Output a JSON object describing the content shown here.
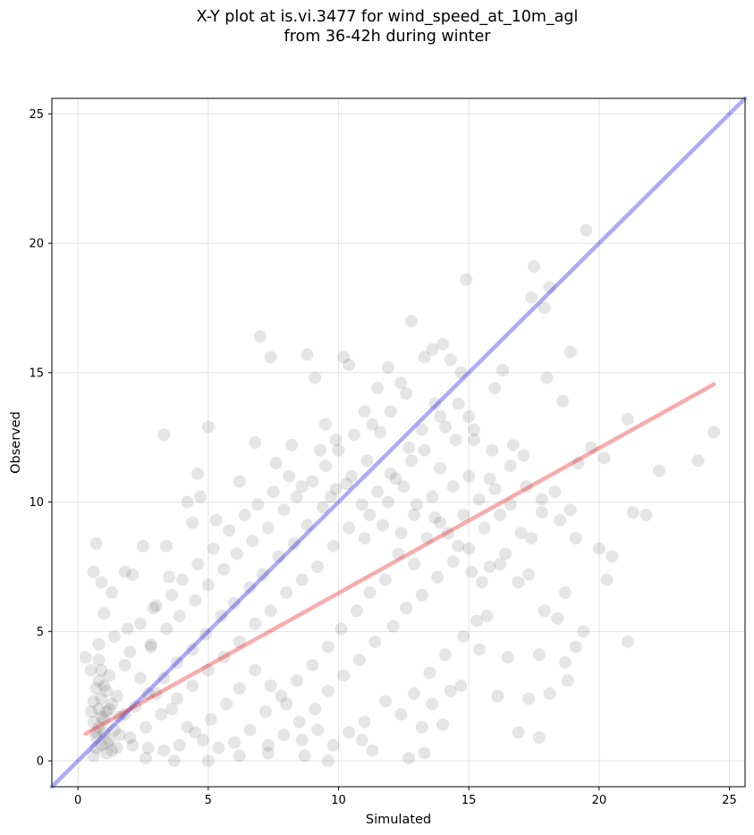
{
  "title": "X-Y plot at is.vi.3477 for wind_speed_at_10m_agl\nfrom 36-42h during winter",
  "chart_data": {
    "type": "scatter",
    "title": "X-Y plot at is.vi.3477 for wind_speed_at_10m_agl\nfrom 36-42h during winter",
    "xlabel": "Simulated",
    "ylabel": "Observed",
    "xlim": [
      -1.0,
      25.6
    ],
    "ylim": [
      -1.0,
      25.6
    ],
    "xticks": [
      0,
      5,
      10,
      15,
      20,
      25
    ],
    "yticks": [
      0,
      5,
      10,
      15,
      20,
      25
    ],
    "grid": true,
    "series": [
      {
        "marker_color": "#000000",
        "alpha": 0.1,
        "points": [
          [
            0.7,
            8.4
          ],
          [
            0.6,
            7.3
          ],
          [
            0.9,
            6.9
          ],
          [
            1.3,
            6.5
          ],
          [
            1.0,
            5.7
          ],
          [
            0.8,
            4.5
          ],
          [
            0.3,
            4.0
          ],
          [
            0.5,
            3.5
          ],
          [
            1.4,
            4.8
          ],
          [
            1.8,
            7.3
          ],
          [
            2.1,
            7.2
          ],
          [
            2.5,
            8.3
          ],
          [
            3.4,
            8.3
          ],
          [
            3.3,
            12.6
          ],
          [
            3.5,
            7.1
          ],
          [
            3.0,
            6.0
          ],
          [
            2.4,
            5.3
          ],
          [
            1.9,
            5.1
          ],
          [
            2.0,
            4.2
          ],
          [
            2.8,
            4.4
          ],
          [
            4.2,
            10.0
          ],
          [
            4.6,
            11.1
          ],
          [
            4.4,
            9.2
          ],
          [
            5.0,
            12.9
          ],
          [
            4.7,
            10.2
          ],
          [
            5.3,
            9.3
          ],
          [
            6.2,
            10.8
          ],
          [
            6.8,
            12.3
          ],
          [
            7.0,
            16.4
          ],
          [
            7.4,
            15.6
          ],
          [
            8.2,
            12.2
          ],
          [
            8.8,
            15.7
          ],
          [
            9.1,
            14.8
          ],
          [
            9.5,
            13.0
          ],
          [
            9.9,
            12.4
          ],
          [
            10.2,
            15.6
          ],
          [
            10.4,
            15.3
          ],
          [
            11.0,
            13.5
          ],
          [
            11.5,
            14.4
          ],
          [
            11.9,
            15.2
          ],
          [
            12.4,
            14.6
          ],
          [
            12.8,
            17.0
          ],
          [
            13.3,
            15.6
          ],
          [
            13.6,
            15.9
          ],
          [
            14.0,
            16.1
          ],
          [
            14.3,
            15.5
          ],
          [
            14.9,
            18.6
          ],
          [
            14.7,
            15.0
          ],
          [
            15.0,
            13.3
          ],
          [
            15.2,
            12.4
          ],
          [
            15.8,
            10.9
          ],
          [
            16.0,
            14.4
          ],
          [
            16.3,
            15.1
          ],
          [
            16.7,
            12.2
          ],
          [
            17.1,
            11.8
          ],
          [
            17.4,
            17.9
          ],
          [
            17.5,
            19.1
          ],
          [
            17.9,
            17.5
          ],
          [
            18.1,
            18.3
          ],
          [
            18.0,
            14.8
          ],
          [
            18.6,
            13.9
          ],
          [
            18.9,
            15.8
          ],
          [
            19.5,
            20.5
          ],
          [
            19.2,
            11.5
          ],
          [
            19.7,
            12.1
          ],
          [
            20.2,
            11.7
          ],
          [
            20.5,
            7.9
          ],
          [
            20.3,
            7.0
          ],
          [
            20.0,
            8.2
          ],
          [
            21.1,
            13.2
          ],
          [
            21.3,
            9.6
          ],
          [
            21.8,
            9.5
          ],
          [
            22.3,
            11.2
          ],
          [
            23.8,
            11.6
          ],
          [
            24.4,
            12.7
          ],
          [
            21.1,
            4.6
          ],
          [
            19.4,
            5.0
          ],
          [
            19.1,
            4.4
          ],
          [
            18.7,
            3.8
          ],
          [
            18.8,
            3.1
          ],
          [
            18.1,
            2.6
          ],
          [
            17.7,
            4.1
          ],
          [
            17.3,
            2.4
          ],
          [
            16.9,
            1.1
          ],
          [
            17.7,
            0.9
          ],
          [
            16.1,
            2.5
          ],
          [
            16.5,
            4.0
          ],
          [
            15.4,
            4.3
          ],
          [
            15.7,
            5.6
          ],
          [
            14.7,
            2.9
          ],
          [
            14.3,
            2.7
          ],
          [
            14.0,
            1.4
          ],
          [
            13.6,
            2.2
          ],
          [
            13.2,
            1.3
          ],
          [
            12.7,
            0.1
          ],
          [
            13.3,
            0.3
          ],
          [
            11.3,
            0.4
          ],
          [
            10.9,
            0.8
          ],
          [
            9.6,
            0.0
          ],
          [
            8.7,
            0.2
          ],
          [
            7.3,
            0.3
          ],
          [
            6.2,
            0.2
          ],
          [
            5.0,
            0.0
          ],
          [
            3.7,
            0.0
          ],
          [
            2.6,
            0.1
          ],
          [
            16.6,
            9.9
          ],
          [
            17.0,
            8.8
          ],
          [
            17.4,
            8.6
          ],
          [
            17.8,
            9.6
          ],
          [
            18.3,
            10.4
          ],
          [
            18.9,
            9.7
          ],
          [
            16.9,
            6.9
          ],
          [
            17.3,
            7.2
          ],
          [
            18.7,
            6.5
          ],
          [
            18.4,
            5.5
          ],
          [
            17.9,
            5.8
          ],
          [
            16.2,
            7.6
          ],
          [
            15.5,
            6.9
          ],
          [
            15.1,
            7.3
          ],
          [
            14.6,
            8.3
          ],
          [
            13.9,
            9.2
          ],
          [
            13.4,
            8.6
          ],
          [
            12.9,
            7.6
          ],
          [
            12.3,
            8.0
          ],
          [
            11.8,
            7.0
          ],
          [
            11.2,
            6.5
          ],
          [
            10.7,
            5.8
          ],
          [
            10.1,
            5.1
          ],
          [
            9.6,
            4.4
          ],
          [
            9.0,
            3.7
          ],
          [
            8.4,
            3.1
          ],
          [
            7.8,
            2.5
          ],
          [
            7.2,
            1.9
          ],
          [
            6.6,
            1.2
          ],
          [
            6.0,
            0.7
          ],
          [
            5.4,
            0.5
          ],
          [
            4.8,
            0.8
          ],
          [
            4.2,
            1.3
          ],
          [
            3.6,
            2.0
          ],
          [
            3.0,
            2.6
          ],
          [
            2.4,
            3.2
          ],
          [
            1.8,
            3.7
          ],
          [
            14.1,
            12.9
          ],
          [
            13.7,
            13.8
          ],
          [
            12.6,
            14.2
          ],
          [
            12.0,
            13.5
          ],
          [
            11.6,
            12.7
          ],
          [
            11.1,
            11.6
          ],
          [
            10.5,
            11.0
          ],
          [
            9.9,
            10.5
          ],
          [
            9.4,
            9.8
          ],
          [
            8.8,
            9.1
          ],
          [
            8.3,
            8.4
          ],
          [
            7.7,
            7.9
          ],
          [
            7.1,
            7.2
          ],
          [
            6.6,
            6.7
          ],
          [
            6.0,
            6.1
          ],
          [
            5.5,
            5.6
          ],
          [
            4.9,
            4.9
          ],
          [
            4.4,
            4.3
          ],
          [
            3.8,
            3.8
          ],
          [
            3.3,
            3.2
          ],
          [
            2.7,
            2.6
          ],
          [
            2.2,
            2.1
          ],
          [
            1.6,
            1.7
          ],
          [
            12.2,
            10.9
          ],
          [
            12.8,
            11.6
          ],
          [
            13.3,
            12.0
          ],
          [
            13.9,
            11.3
          ],
          [
            14.4,
            10.6
          ],
          [
            15.0,
            11.0
          ],
          [
            14.5,
            12.4
          ],
          [
            13.6,
            10.2
          ],
          [
            12.9,
            9.5
          ],
          [
            12.4,
            8.8
          ],
          [
            11.7,
            9.1
          ],
          [
            11.0,
            8.6
          ],
          [
            10.4,
            9.0
          ],
          [
            9.8,
            8.3
          ],
          [
            9.2,
            7.5
          ],
          [
            8.6,
            7.0
          ],
          [
            8.0,
            6.5
          ],
          [
            7.4,
            5.8
          ],
          [
            6.8,
            5.3
          ],
          [
            6.2,
            4.6
          ],
          [
            5.6,
            4.0
          ],
          [
            5.0,
            3.5
          ],
          [
            4.4,
            2.9
          ],
          [
            3.8,
            2.4
          ],
          [
            3.2,
            1.8
          ],
          [
            2.6,
            1.3
          ],
          [
            2.0,
            0.9
          ],
          [
            10.8,
            3.9
          ],
          [
            10.2,
            3.3
          ],
          [
            9.6,
            2.7
          ],
          [
            9.1,
            2.0
          ],
          [
            8.5,
            1.5
          ],
          [
            7.9,
            1.0
          ],
          [
            7.3,
            0.6
          ],
          [
            11.4,
            4.6
          ],
          [
            12.1,
            5.2
          ],
          [
            12.6,
            5.9
          ],
          [
            13.2,
            6.4
          ],
          [
            13.8,
            7.1
          ],
          [
            14.4,
            7.7
          ],
          [
            15.0,
            8.2
          ],
          [
            15.6,
            9.0
          ],
          [
            16.2,
            9.5
          ],
          [
            11.8,
            2.3
          ],
          [
            12.4,
            1.8
          ],
          [
            12.9,
            2.6
          ],
          [
            13.5,
            3.4
          ],
          [
            14.1,
            4.1
          ],
          [
            14.8,
            4.8
          ],
          [
            15.3,
            5.4
          ],
          [
            11.0,
            1.5
          ],
          [
            10.4,
            1.1
          ],
          [
            9.8,
            0.6
          ],
          [
            9.2,
            1.2
          ],
          [
            8.6,
            0.8
          ],
          [
            8.0,
            2.2
          ],
          [
            7.4,
            2.9
          ],
          [
            6.8,
            3.5
          ],
          [
            6.2,
            2.8
          ],
          [
            5.7,
            2.2
          ],
          [
            5.1,
            1.6
          ],
          [
            4.5,
            1.1
          ],
          [
            3.9,
            0.6
          ],
          [
            3.3,
            0.4
          ],
          [
            2.7,
            0.5
          ],
          [
            2.1,
            0.6
          ],
          [
            1.5,
            0.5
          ],
          [
            1.1,
            0.3
          ],
          [
            0.9,
            0.6
          ],
          [
            0.7,
            0.9
          ],
          [
            0.8,
            1.3
          ],
          [
            1.0,
            1.6
          ],
          [
            1.2,
            2.0
          ],
          [
            0.9,
            2.4
          ],
          [
            0.7,
            2.8
          ],
          [
            0.8,
            3.1
          ],
          [
            1.1,
            2.7
          ],
          [
            1.3,
            2.2
          ],
          [
            1.0,
            1.1
          ],
          [
            0.6,
            1.5
          ],
          [
            0.5,
            1.9
          ],
          [
            0.6,
            2.3
          ],
          [
            0.7,
            0.5
          ],
          [
            1.2,
            0.8
          ],
          [
            1.4,
            1.2
          ],
          [
            1.1,
            1.9
          ],
          [
            0.9,
            3.5
          ],
          [
            1.2,
            3.3
          ],
          [
            0.8,
            3.9
          ],
          [
            1.5,
            2.5
          ],
          [
            1.6,
            1.0
          ],
          [
            0.6,
            0.2
          ],
          [
            1.3,
            0.4
          ],
          [
            1.8,
            1.8
          ],
          [
            0.9,
            1.7
          ],
          [
            1.0,
            2.9
          ],
          [
            0.7,
            1.1
          ],
          [
            1.1,
            0.7
          ],
          [
            0.8,
            2.0
          ],
          [
            9.5,
            11.4
          ],
          [
            10.0,
            12.0
          ],
          [
            10.6,
            12.6
          ],
          [
            11.3,
            13.0
          ],
          [
            9.0,
            10.8
          ],
          [
            8.4,
            10.2
          ],
          [
            7.9,
            9.7
          ],
          [
            7.3,
            9.0
          ],
          [
            6.7,
            8.5
          ],
          [
            6.1,
            8.0
          ],
          [
            5.6,
            7.4
          ],
          [
            5.0,
            6.8
          ],
          [
            4.5,
            6.2
          ],
          [
            3.9,
            5.6
          ],
          [
            3.4,
            5.1
          ],
          [
            2.8,
            4.5
          ],
          [
            10.9,
            9.9
          ],
          [
            11.5,
            10.4
          ],
          [
            12.0,
            11.1
          ],
          [
            12.7,
            12.1
          ],
          [
            13.2,
            12.8
          ],
          [
            13.9,
            13.3
          ],
          [
            14.6,
            13.8
          ],
          [
            15.2,
            12.8
          ],
          [
            15.9,
            12.0
          ],
          [
            16.6,
            11.4
          ],
          [
            17.2,
            10.6
          ],
          [
            17.8,
            10.1
          ],
          [
            18.5,
            9.3
          ],
          [
            19.1,
            8.6
          ],
          [
            16.4,
            8.0
          ],
          [
            15.8,
            7.5
          ],
          [
            8.1,
            11.0
          ],
          [
            7.6,
            11.5
          ],
          [
            9.3,
            12.0
          ],
          [
            9.7,
            10.2
          ],
          [
            10.3,
            10.7
          ],
          [
            11.2,
            9.5
          ],
          [
            11.9,
            10.0
          ],
          [
            12.5,
            10.6
          ],
          [
            13.0,
            9.9
          ],
          [
            13.7,
            9.4
          ],
          [
            14.2,
            8.8
          ],
          [
            14.8,
            9.5
          ],
          [
            15.4,
            10.1
          ],
          [
            16.0,
            10.5
          ],
          [
            6.4,
            9.5
          ],
          [
            5.8,
            8.9
          ],
          [
            5.2,
            8.2
          ],
          [
            4.6,
            7.6
          ],
          [
            4.0,
            7.0
          ],
          [
            3.6,
            6.4
          ],
          [
            2.9,
            5.9
          ],
          [
            6.9,
            9.9
          ],
          [
            7.5,
            10.4
          ],
          [
            8.6,
            10.6
          ]
        ]
      }
    ],
    "lines": [
      {
        "color": "#0000ee",
        "alpha": 0.33,
        "points": [
          [
            -1.0,
            -1.0
          ],
          [
            25.6,
            25.6
          ]
        ]
      },
      {
        "color": "#ee0000",
        "alpha": 0.33,
        "points": [
          [
            0.3,
            1.05
          ],
          [
            24.4,
            14.55
          ]
        ]
      }
    ]
  }
}
